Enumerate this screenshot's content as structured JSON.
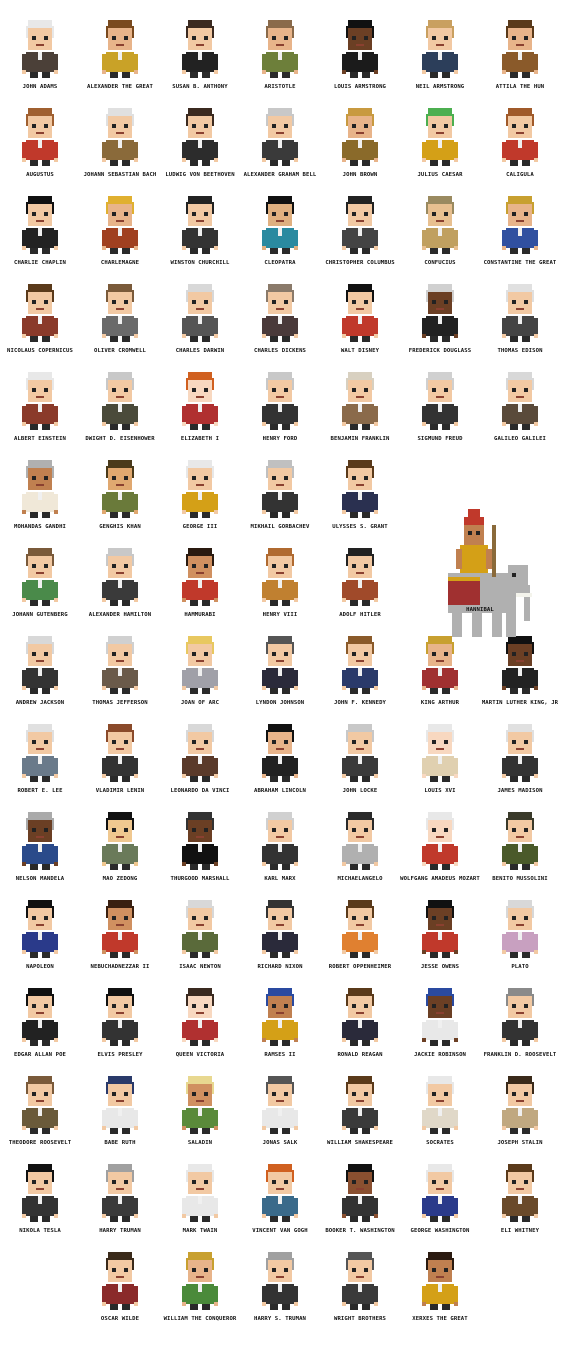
{
  "title": "",
  "figures": [
    {
      "name": "JOHN ADAMS",
      "hair": "#e8e8e8",
      "skin": "#f2c9a3",
      "outfit": "#4b4038"
    },
    {
      "name": "ALEXANDER THE GREAT",
      "hair": "#7a4a1e",
      "skin": "#e8b48a",
      "outfit": "#c9a227"
    },
    {
      "name": "SUSAN B. ANTHONY",
      "hair": "#3b2a20",
      "skin": "#f2c9a3",
      "outfit": "#222222"
    },
    {
      "name": "ARISTOTLE",
      "hair": "#8a6a4a",
      "skin": "#e8b48a",
      "outfit": "#6d7f3a"
    },
    {
      "name": "LOUIS ARMSTRONG",
      "hair": "#111111",
      "skin": "#6b3f24",
      "outfit": "#1b1b1b"
    },
    {
      "name": "NEIL ARMSTRONG",
      "hair": "#c9a060",
      "skin": "#f2c9a3",
      "outfit": "#2c3e5a"
    },
    {
      "name": "ATTILA THE HUN",
      "hair": "#5a3a1a",
      "skin": "#e8b48a",
      "outfit": "#8a5a2a"
    },
    {
      "name": "AUGUSTUS",
      "hair": "#a06030",
      "skin": "#f2c9a3",
      "outfit": "#c0392b"
    },
    {
      "name": "JOHANN SEBASTIAN BACH",
      "hair": "#e0e0e0",
      "skin": "#f2c9a3",
      "outfit": "#8a6a3a"
    },
    {
      "name": "LUDWIG VON BEETHOVEN",
      "hair": "#3b2a20",
      "skin": "#f2c9a3",
      "outfit": "#2c2c2c"
    },
    {
      "name": "ALEXANDER GRAHAM BELL",
      "hair": "#c8c8c8",
      "skin": "#f2c9a3",
      "outfit": "#3a3a3a"
    },
    {
      "name": "JOHN BROWN",
      "hair": "#c89a40",
      "skin": "#e8b48a",
      "outfit": "#8a6a2a"
    },
    {
      "name": "JULIUS CAESAR",
      "hair": "#4caf50",
      "skin": "#f2c9a3",
      "outfit": "#d4a017"
    },
    {
      "name": "CALIGULA",
      "hair": "#a05a2a",
      "skin": "#f2c9a3",
      "outfit": "#c0392b"
    },
    {
      "name": "CHARLIE CHAPLIN",
      "hair": "#111111",
      "skin": "#f2c9a3",
      "outfit": "#222222"
    },
    {
      "name": "CHARLEMAGNE",
      "hair": "#e0b030",
      "skin": "#e8b48a",
      "outfit": "#a04020"
    },
    {
      "name": "WINSTON CHURCHILL",
      "hair": "#222222",
      "skin": "#f2c9a3",
      "outfit": "#333333"
    },
    {
      "name": "CLEOPATRA",
      "hair": "#111111",
      "skin": "#e0b080",
      "outfit": "#2a8aa0"
    },
    {
      "name": "CHRISTOPHER COLUMBUS",
      "hair": "#222222",
      "skin": "#f2c9a3",
      "outfit": "#444444"
    },
    {
      "name": "CONFUCIUS",
      "hair": "#9a8a60",
      "skin": "#e8c090",
      "outfit": "#c0a060"
    },
    {
      "name": "CONSTANTINE THE GREAT",
      "hair": "#c8a030",
      "skin": "#e8b48a",
      "outfit": "#3050a0"
    },
    {
      "name": "NICOLAUS COPERNICUS",
      "hair": "#5a3a1a",
      "skin": "#f2c9a3",
      "outfit": "#8a3a2a"
    },
    {
      "name": "OLIVER CROMWELL",
      "hair": "#7a5a3a",
      "skin": "#f2c9a3",
      "outfit": "#6a6a6a"
    },
    {
      "name": "CHARLES DARWIN",
      "hair": "#d8d8d8",
      "skin": "#f2c9a3",
      "outfit": "#555555"
    },
    {
      "name": "CHARLES DICKENS",
      "hair": "#8a7a6a",
      "skin": "#f2c9a3",
      "outfit": "#4a3a3a"
    },
    {
      "name": "WALT DISNEY",
      "hair": "#111111",
      "skin": "#f2c9a3",
      "outfit": "#c0392b"
    },
    {
      "name": "FREDERICK DOUGLASS",
      "hair": "#d0d0d0",
      "skin": "#6b3f24",
      "outfit": "#222222"
    },
    {
      "name": "THOMAS EDISON",
      "hair": "#e0e0e0",
      "skin": "#f2c9a3",
      "outfit": "#444444"
    },
    {
      "name": "ALBERT EINSTEIN",
      "hair": "#e8e8e8",
      "skin": "#f2c9a3",
      "outfit": "#8a3a2a"
    },
    {
      "name": "DWIGHT D. EISENHOWER",
      "hair": "#c8c8c8",
      "skin": "#f2c9a3",
      "outfit": "#4a4a3a"
    },
    {
      "name": "ELIZABETH I",
      "hair": "#d06020",
      "skin": "#f8d8c0",
      "outfit": "#b03030"
    },
    {
      "name": "HENRY FORD",
      "hair": "#c8c8c8",
      "skin": "#f2c9a3",
      "outfit": "#333333"
    },
    {
      "name": "BENJAMIN FRANKLIN",
      "hair": "#d8d0c0",
      "skin": "#f2c9a3",
      "outfit": "#8a6a4a"
    },
    {
      "name": "SIGMUND FREUD",
      "hair": "#d0d0d0",
      "skin": "#f2c9a3",
      "outfit": "#333333"
    },
    {
      "name": "GALILEO GALILEI",
      "hair": "#d8d8d8",
      "skin": "#f2c9a3",
      "outfit": "#5a4a3a"
    },
    {
      "name": "MOHANDAS GANDHI",
      "hair": "#b0b0b0",
      "skin": "#c08050",
      "outfit": "#f0e8d8"
    },
    {
      "name": "GENGHIS KHAN",
      "hair": "#4a3a1a",
      "skin": "#e0a870",
      "outfit": "#6a7a3a"
    },
    {
      "name": "GEORGE III",
      "hair": "#e8e8e8",
      "skin": "#f2c9a3",
      "outfit": "#d4a017"
    },
    {
      "name": "MIKHAIL GORBACHEV",
      "hair": "#c0c0c0",
      "skin": "#f2c9a3",
      "outfit": "#333333"
    },
    {
      "name": "ULYSSES S. GRANT",
      "hair": "#5a3a1a",
      "skin": "#f2c9a3",
      "outfit": "#2a3050"
    },
    {
      "name": "JOHANN GUTENBERG",
      "hair": "#7a5a3a",
      "skin": "#f2c9a3",
      "outfit": "#4a8a4a"
    },
    {
      "name": "ALEXANDER HAMILTON",
      "hair": "#c8c8c8",
      "skin": "#f2c9a3",
      "outfit": "#3a3a3a"
    },
    {
      "name": "HAMMURABI",
      "hair": "#2a1a10",
      "skin": "#d09060",
      "outfit": "#c0392b"
    },
    {
      "name": "HENRY VIII",
      "hair": "#b06a30",
      "skin": "#f2c9a3",
      "outfit": "#c08030"
    },
    {
      "name": "ADOLF HITLER",
      "hair": "#222222",
      "skin": "#f2c9a3",
      "outfit": "#a04a2a"
    },
    {
      "name": "ANDREW JACKSON",
      "hair": "#d8d8d8",
      "skin": "#f2c9a3",
      "outfit": "#333333"
    },
    {
      "name": "THOMAS JEFFERSON",
      "hair": "#d0d0d0",
      "skin": "#f2c9a3",
      "outfit": "#6a5a4a"
    },
    {
      "name": "JOAN OF ARC",
      "hair": "#e8c860",
      "skin": "#f2c9a3",
      "outfit": "#a0a0a8"
    },
    {
      "name": "LYNDON JOHNSON",
      "hair": "#555555",
      "skin": "#f2c9a3",
      "outfit": "#2a2a3a"
    },
    {
      "name": "JOHN F. KENNEDY",
      "hair": "#8a5a2a",
      "skin": "#f2c9a3",
      "outfit": "#2a3a6a"
    },
    {
      "name": "KING ARTHUR",
      "hair": "#c8a030",
      "skin": "#e8b48a",
      "outfit": "#a03030"
    },
    {
      "name": "MARTIN LUTHER KING, JR",
      "hair": "#111111",
      "skin": "#6b3f24",
      "outfit": "#222222"
    },
    {
      "name": "ROBERT E. LEE",
      "hair": "#e0e0e0",
      "skin": "#f2c9a3",
      "outfit": "#6a7a8a"
    },
    {
      "name": "VLADIMIR LENIN",
      "hair": "#8a4a2a",
      "skin": "#f2c9a3",
      "outfit": "#333333"
    },
    {
      "name": "LEONARDO DA VINCI",
      "hair": "#d8d8d8",
      "skin": "#f2c9a3",
      "outfit": "#5a3a2a"
    },
    {
      "name": "ABRAHAM LINCOLN",
      "hair": "#111111",
      "skin": "#e8b48a",
      "outfit": "#222222"
    },
    {
      "name": "JOHN LOCKE",
      "hair": "#c8c8c8",
      "skin": "#f2c9a3",
      "outfit": "#3a3a3a"
    },
    {
      "name": "LOUIS XVI",
      "hair": "#e8e8e8",
      "skin": "#f8d8c0",
      "outfit": "#e0d0b0"
    },
    {
      "name": "JAMES MADISON",
      "hair": "#e0e0e0",
      "skin": "#f2c9a3",
      "outfit": "#333333"
    },
    {
      "name": "NELSON MANDELA",
      "hair": "#aaaaaa",
      "skin": "#6b3f24",
      "outfit": "#2a4a8a"
    },
    {
      "name": "MAO ZEDONG",
      "hair": "#111111",
      "skin": "#f0c890",
      "outfit": "#6a7a5a"
    },
    {
      "name": "THURGOOD MARSHALL",
      "hair": "#333333",
      "skin": "#6b3f24",
      "outfit": "#111111"
    },
    {
      "name": "KARL MARX",
      "hair": "#d0d0d0",
      "skin": "#f2c9a3",
      "outfit": "#333333"
    },
    {
      "name": "MICHAELANGELO",
      "hair": "#2a2a2a",
      "skin": "#f2c9a3",
      "outfit": "#b0b0b0"
    },
    {
      "name": "WOLFGANG AMADEUS MOZART",
      "hair": "#e8e8e8",
      "skin": "#f8d8c0",
      "outfit": "#c0392b"
    },
    {
      "name": "BENITO MUSSOLINI",
      "hair": "#3a3a2a",
      "skin": "#f2c9a3",
      "outfit": "#4a5a2a"
    },
    {
      "name": "NAPOLEON",
      "hair": "#111111",
      "skin": "#f2c9a3",
      "outfit": "#2a3a8a"
    },
    {
      "name": "NEBUCHADNEZZAR II",
      "hair": "#3a2010",
      "skin": "#d09060",
      "outfit": "#c0392b"
    },
    {
      "name": "ISAAC NEWTON",
      "hair": "#d8d8d8",
      "skin": "#f2c9a3",
      "outfit": "#5a6a3a"
    },
    {
      "name": "RICHARD NIXON",
      "hair": "#333333",
      "skin": "#f2c9a3",
      "outfit": "#2a2a3a"
    },
    {
      "name": "ROBERT OPPENHEIMER",
      "hair": "#5a3a1a",
      "skin": "#f2c9a3",
      "outfit": "#e08030"
    },
    {
      "name": "JESSE OWENS",
      "hair": "#111111",
      "skin": "#6b3f24",
      "outfit": "#c0392b"
    },
    {
      "name": "PLATO",
      "hair": "#d8d8d8",
      "skin": "#f2c9a3",
      "outfit": "#c8a0c0"
    },
    {
      "name": "EDGAR ALLAN POE",
      "hair": "#111111",
      "skin": "#f2c9a3",
      "outfit": "#222222"
    },
    {
      "name": "ELVIS PRESLEY",
      "hair": "#111111",
      "skin": "#f2c9a3",
      "outfit": "#333333"
    },
    {
      "name": "QUEEN VICTORIA",
      "hair": "#3a2a20",
      "skin": "#f8d8c0",
      "outfit": "#b03030"
    },
    {
      "name": "RAMSES II",
      "hair": "#2a4aa0",
      "skin": "#c08050",
      "outfit": "#d4a017"
    },
    {
      "name": "RONALD REAGAN",
      "hair": "#5a3a1a",
      "skin": "#f2c9a3",
      "outfit": "#2a2a3a"
    },
    {
      "name": "JACKIE ROBINSON",
      "hair": "#2a4aa0",
      "skin": "#6b3f24",
      "outfit": "#e8e8e8"
    },
    {
      "name": "FRANKLIN D. ROOSEVELT",
      "hair": "#8a8a8a",
      "skin": "#f2c9a3",
      "outfit": "#333333"
    },
    {
      "name": "THEODORE ROOSEVELT",
      "hair": "#7a5a3a",
      "skin": "#f2c9a3",
      "outfit": "#6a5a3a"
    },
    {
      "name": "BABE RUTH",
      "hair": "#2a3a6a",
      "skin": "#f2c9a3",
      "outfit": "#e8e8e8"
    },
    {
      "name": "SALADIN",
      "hair": "#e8d890",
      "skin": "#d09060",
      "outfit": "#5a8a3a"
    },
    {
      "name": "JONAS SALK",
      "hair": "#555555",
      "skin": "#f2c9a3",
      "outfit": "#e8e8e8"
    },
    {
      "name": "WILLIAM SHAKESPEARE",
      "hair": "#5a3a1a",
      "skin": "#f2c9a3",
      "outfit": "#3a3a3a"
    },
    {
      "name": "SOCRATES",
      "hair": "#e8e8e8",
      "skin": "#f2c9a3",
      "outfit": "#e0d8c8"
    },
    {
      "name": "JOSEPH STALIN",
      "hair": "#3a2a1a",
      "skin": "#f2c9a3",
      "outfit": "#c0a880"
    },
    {
      "name": "NIKOLA TESLA",
      "hair": "#111111",
      "skin": "#f2c9a3",
      "outfit": "#333333"
    },
    {
      "name": "HARRY TRUMAN",
      "hair": "#a0a0a0",
      "skin": "#f2c9a3",
      "outfit": "#3a3a3a"
    },
    {
      "name": "MARK TWAIN",
      "hair": "#e8e8e8",
      "skin": "#f2c9a3",
      "outfit": "#e8e8e8"
    },
    {
      "name": "VINCENT VAN GOGH",
      "hair": "#d06020",
      "skin": "#f2c9a3",
      "outfit": "#3a6a8a"
    },
    {
      "name": "BOOKER T. WASHINGTON",
      "hair": "#111111",
      "skin": "#8a5030",
      "outfit": "#333333"
    },
    {
      "name": "GEORGE WASHINGTON",
      "hair": "#e8e8e8",
      "skin": "#f2c9a3",
      "outfit": "#2a3a8a"
    },
    {
      "name": "ELI WHITNEY",
      "hair": "#5a3a1a",
      "skin": "#f2c9a3",
      "outfit": "#6a4a2a"
    },
    {
      "name": "OSCAR WILDE",
      "hair": "#3a2a1a",
      "skin": "#f2c9a3",
      "outfit": "#8a2a2a"
    },
    {
      "name": "WILLIAM THE CONQUEROR",
      "hair": "#c8a030",
      "skin": "#e8b48a",
      "outfit": "#4a8a3a"
    },
    {
      "name": "HARRY S. TRUMAN",
      "hair": "#a0a0a0",
      "skin": "#f2c9a3",
      "outfit": "#333333"
    },
    {
      "name": "WRIGHT BROTHERS",
      "hair": "#555555",
      "skin": "#f2c9a3",
      "outfit": "#3a3a3a"
    },
    {
      "name": "XERXES THE GREAT",
      "hair": "#2a1a10",
      "skin": "#c08050",
      "outfit": "#d4a017"
    }
  ],
  "hannibal": {
    "name": "HANNIBAL",
    "hair": "#c0392b",
    "skin": "#c08050",
    "outfit": "#d4a017",
    "elephant": "#b0b0b0"
  }
}
